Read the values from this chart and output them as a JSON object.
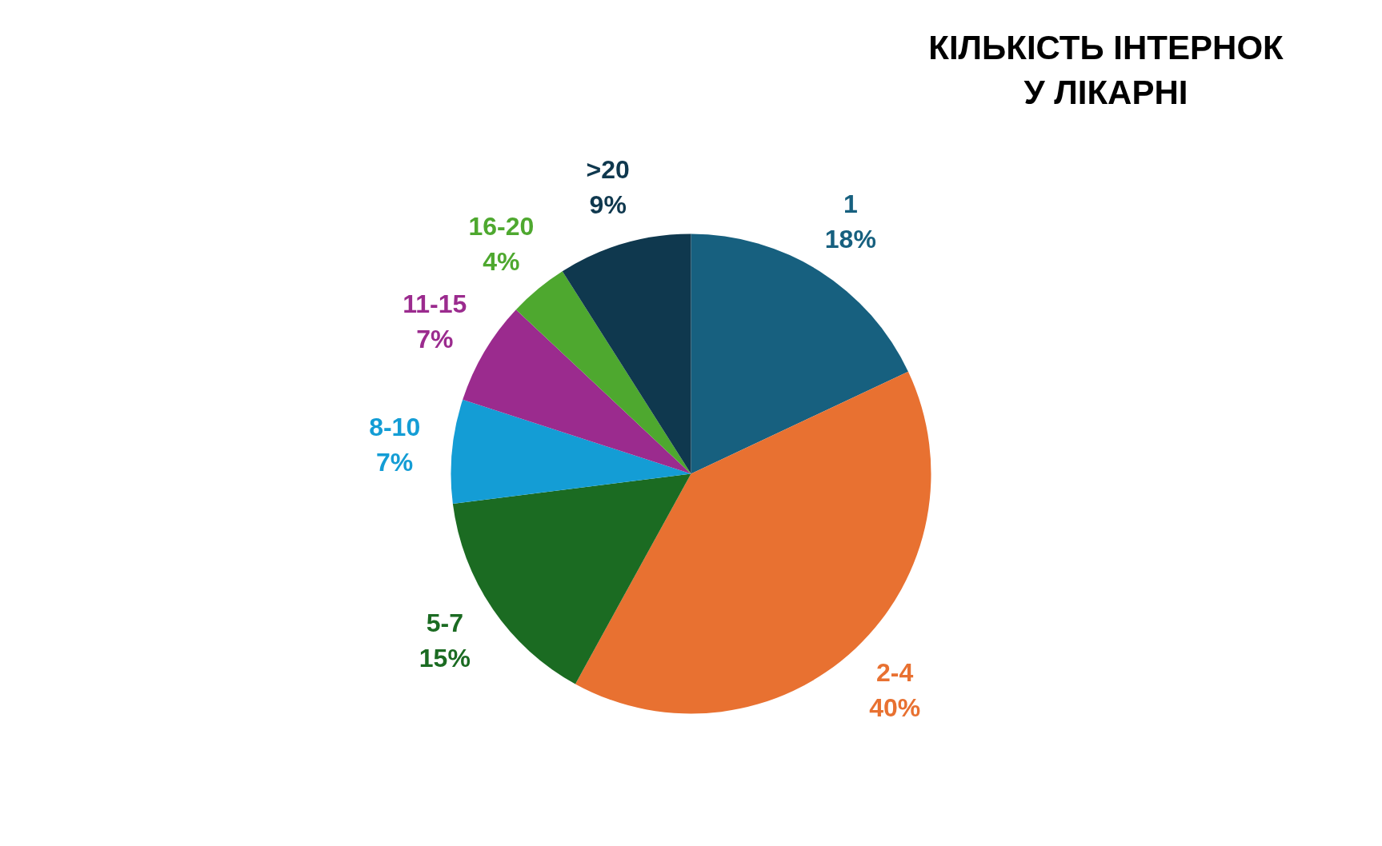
{
  "chart_data": {
    "type": "pie",
    "title": "КІЛЬКІСТЬ ІНТЕРНОК У ЛІКАРНІ",
    "categories": [
      "1",
      "2-4",
      "5-7",
      "8-10",
      "11-15",
      "16-20",
      ">20"
    ],
    "values": [
      18,
      40,
      15,
      7,
      7,
      4,
      9
    ],
    "value_labels": [
      "18%",
      "40%",
      "15%",
      "7%",
      "7%",
      "4%",
      "9%"
    ],
    "colors": [
      "#17607f",
      "#e87131",
      "#1b6b22",
      "#149dd5",
      "#9b2b8e",
      "#4ea82f",
      "#0f384e"
    ],
    "legend": false
  }
}
